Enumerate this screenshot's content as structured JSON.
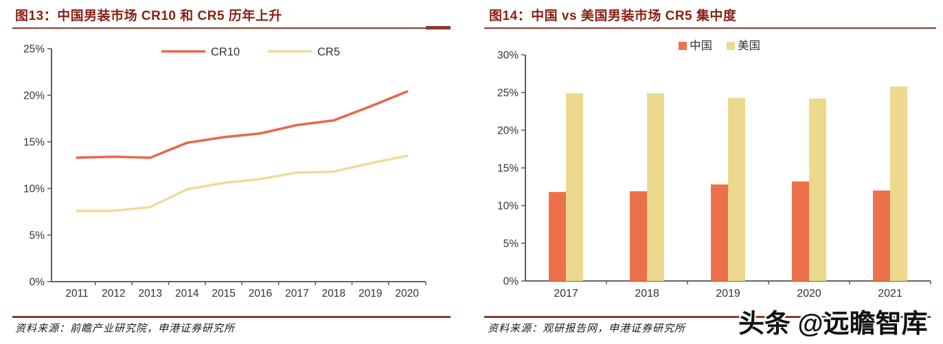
{
  "panels": [
    {
      "title": "图13：中国男装市场 CR10 和 CR5 历年上升",
      "source": "资料来源：前瞻产业研究院，申港证券研究所"
    },
    {
      "title": "图14：中国 vs 美国男装市场 CR5 集中度",
      "source": "资料来源：观研报告网，申港证券研究所"
    }
  ],
  "watermark": {
    "text": "头条 @远瞻智库"
  },
  "colors": {
    "title": "#8B1E12",
    "rule": "#8B3A2A",
    "axis": "#4D4D4D",
    "tick_text": "#333333",
    "cr10": "#E8684A",
    "cr5": "#EFDC9B",
    "china_bar": "#ED7148",
    "usa_bar": "#EDD98E"
  },
  "chart_data": [
    {
      "type": "line",
      "title": "图13：中国男装市场 CR10 和 CR5 历年上升",
      "categories": [
        "2011",
        "2012",
        "2013",
        "2014",
        "2015",
        "2016",
        "2017",
        "2018",
        "2019",
        "2020"
      ],
      "series": [
        {
          "name": "CR10",
          "color": "#E8684A",
          "values": [
            13.3,
            13.4,
            13.3,
            14.9,
            15.5,
            15.9,
            16.8,
            17.3,
            18.8,
            20.4
          ]
        },
        {
          "name": "CR5",
          "color": "#EFDC9B",
          "values": [
            7.6,
            7.6,
            8.0,
            9.9,
            10.6,
            11.0,
            11.7,
            11.8,
            12.7,
            13.5
          ]
        }
      ],
      "xlabel": "",
      "ylabel": "",
      "ylim": [
        0,
        25
      ],
      "ytick_step": 5,
      "ytick_format": "percent",
      "grid": false,
      "legend_position": "top"
    },
    {
      "type": "bar",
      "title": "图14：中国 vs 美国男装市场 CR5 集中度",
      "categories": [
        "2017",
        "2018",
        "2019",
        "2020",
        "2021"
      ],
      "series": [
        {
          "name": "中国",
          "color": "#ED7148",
          "values": [
            11.8,
            11.9,
            12.8,
            13.2,
            12.0
          ]
        },
        {
          "name": "美国",
          "color": "#EDD98E",
          "values": [
            24.9,
            24.9,
            24.3,
            24.2,
            25.8
          ]
        }
      ],
      "xlabel": "",
      "ylabel": "",
      "ylim": [
        0,
        30
      ],
      "ytick_step": 5,
      "ytick_format": "percent",
      "grid": false,
      "legend_position": "top"
    }
  ]
}
